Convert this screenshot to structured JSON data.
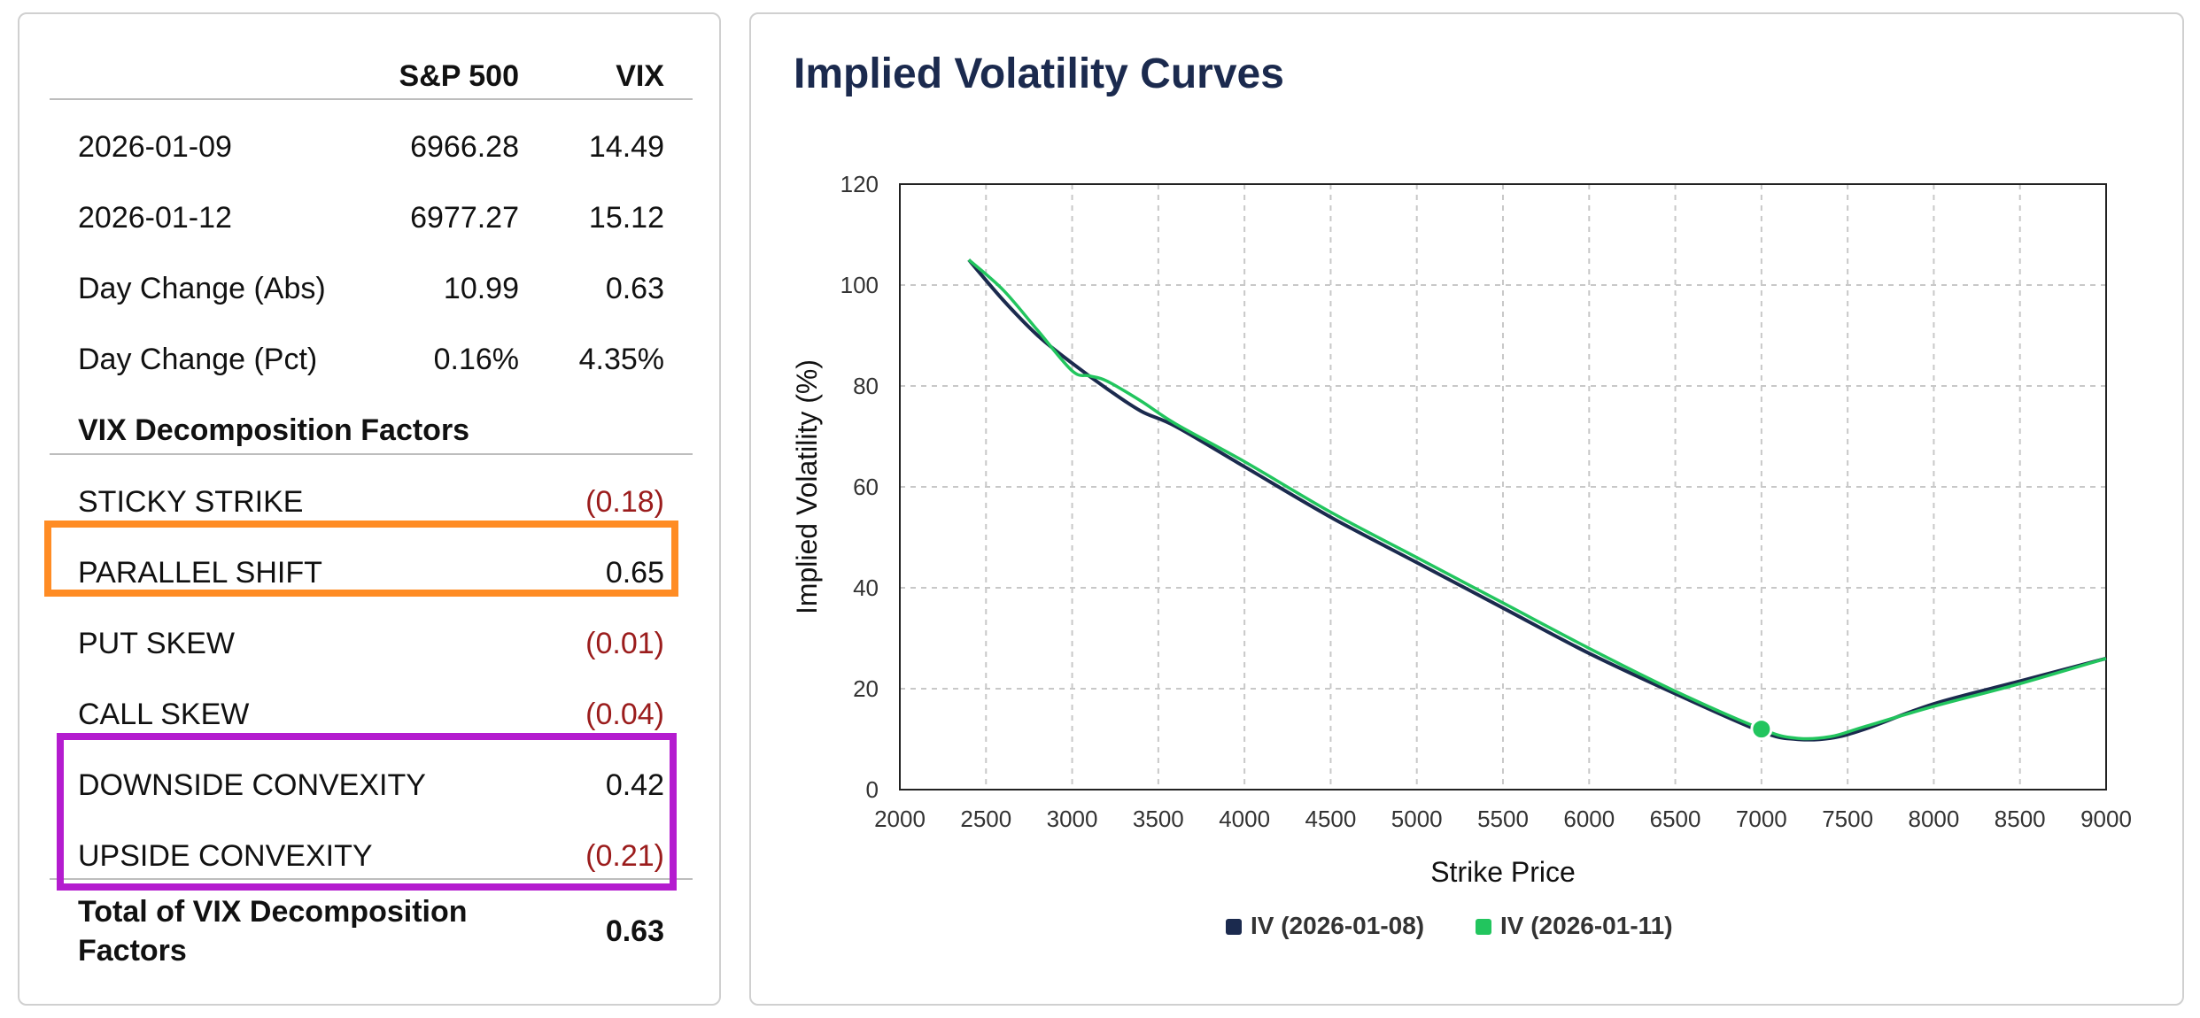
{
  "table": {
    "header": {
      "col1": "",
      "col2": "S&P 500",
      "col3": "VIX"
    },
    "rows": [
      {
        "label": "2026-01-09",
        "sp": "6966.28",
        "vix": "14.49"
      },
      {
        "label": "2026-01-12",
        "sp": "6977.27",
        "vix": "15.12"
      },
      {
        "label": "Day Change (Abs)",
        "sp": "10.99",
        "vix": "0.63"
      },
      {
        "label": "Day Change (Pct)",
        "sp": "0.16%",
        "vix": "4.35%"
      }
    ],
    "factors_title": "VIX Decomposition Factors",
    "factors": [
      {
        "label": "STICKY STRIKE",
        "value": "(0.18)",
        "negative": true
      },
      {
        "label": "PARALLEL SHIFT",
        "value": "0.65",
        "negative": false
      },
      {
        "label": "PUT SKEW",
        "value": "(0.01)",
        "negative": true
      },
      {
        "label": "CALL SKEW",
        "value": "(0.04)",
        "negative": true
      },
      {
        "label": "DOWNSIDE CONVEXITY",
        "value": "0.42",
        "negative": false
      },
      {
        "label": "UPSIDE CONVEXITY",
        "value": "(0.21)",
        "negative": true
      }
    ],
    "total_label": "Total of VIX Decomposition Factors",
    "total_value": "0.63",
    "highlights": {
      "orange": "#ff8c24",
      "purple": "#b41ccf"
    }
  },
  "chart_data": {
    "type": "line",
    "title": "Implied Volatility Curves",
    "xlabel": "Strike Price",
    "ylabel": "Implied Volatility (%)",
    "xlim": [
      2000,
      9000
    ],
    "ylim": [
      0,
      120
    ],
    "xticks": [
      2000,
      2500,
      3000,
      3500,
      4000,
      4500,
      5000,
      5500,
      6000,
      6500,
      7000,
      7500,
      8000,
      8500,
      9000
    ],
    "yticks": [
      0,
      20,
      40,
      60,
      80,
      100,
      120
    ],
    "grid": true,
    "legend_position": "bottom",
    "series": [
      {
        "name": "IV (2026-01-08)",
        "color": "#1b2a4e",
        "x": [
          2400,
          2600,
          2800,
          3000,
          3200,
          3400,
          3600,
          4000,
          4500,
          5000,
          5500,
          6000,
          6500,
          7000,
          7200,
          7400,
          7600,
          8000,
          8500,
          9000
        ],
        "y": [
          105,
          97,
          90,
          84.5,
          79.5,
          75,
          72,
          64,
          54,
          45,
          36,
          27,
          19,
          11.5,
          10,
          10.2,
          12,
          17,
          21.5,
          26
        ]
      },
      {
        "name": "IV (2026-01-11)",
        "color": "#22c55e",
        "x": [
          2400,
          2600,
          2800,
          3000,
          3100,
          3200,
          3400,
          3600,
          4000,
          4500,
          5000,
          5500,
          6000,
          6500,
          7000,
          7200,
          7400,
          7600,
          8000,
          8500,
          9000
        ],
        "y": [
          105,
          99,
          91,
          83,
          82,
          81,
          77,
          72.5,
          65,
          55,
          46,
          37,
          28,
          19.5,
          12,
          10.2,
          10.5,
          12.5,
          16.5,
          21,
          26
        ]
      }
    ],
    "marker": {
      "x": 7000,
      "y": 12,
      "color": "#22c55e"
    }
  }
}
